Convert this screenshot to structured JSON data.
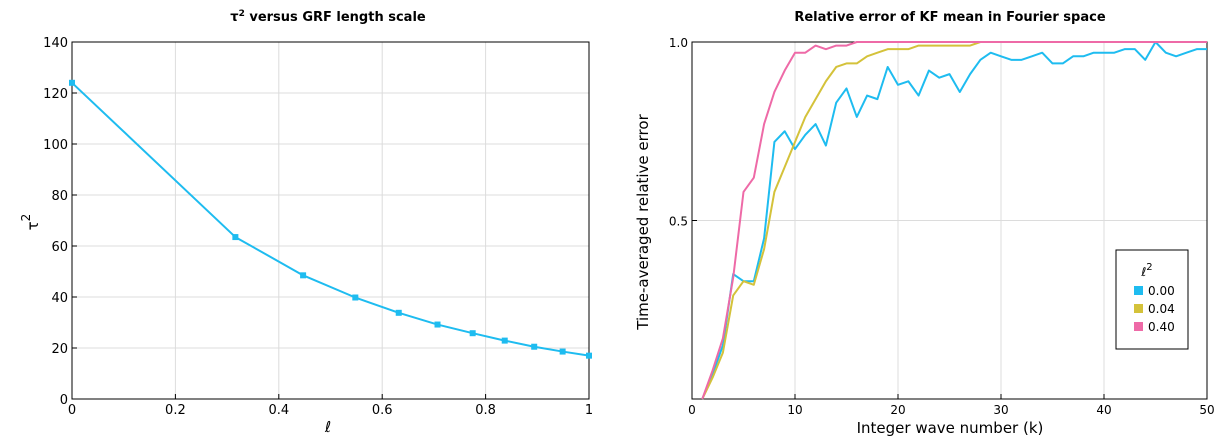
{
  "chart_data": [
    {
      "type": "line",
      "title_main": "τ",
      "title_sup": "2",
      "title_rest": " versus GRF length scale",
      "xlabel": "ℓ",
      "ylabel": "τ",
      "ylabel_sup": "2",
      "xlim": [
        0,
        1
      ],
      "ylim": [
        0,
        140
      ],
      "xticks": [
        0,
        0.2,
        0.4,
        0.6,
        0.8,
        1
      ],
      "xtick_labels": [
        "0",
        "0.2",
        "0.4",
        "0.6",
        "0.8",
        "1"
      ],
      "yticks": [
        0,
        20,
        40,
        60,
        80,
        100,
        120,
        140
      ],
      "ytick_labels": [
        "0",
        "20",
        "40",
        "60",
        "80",
        "100",
        "120",
        "140"
      ],
      "grid": true,
      "series": [
        {
          "color": "#1ebcf0",
          "x": [
            0,
            0.316,
            0.447,
            0.548,
            0.632,
            0.707,
            0.775,
            0.837,
            0.894,
            0.949,
            1.0
          ],
          "y": [
            124,
            63.5,
            48.5,
            39.8,
            33.8,
            29.2,
            25.8,
            22.9,
            20.5,
            18.6,
            17
          ]
        }
      ]
    },
    {
      "type": "line",
      "title": "Relative error of KF mean in Fourier space",
      "xlabel": "Integer wave number (k)",
      "ylabel": "Time-averaged relative error",
      "xlim": [
        0,
        50
      ],
      "ylim": [
        0,
        1
      ],
      "xticks": [
        0,
        10,
        20,
        30,
        40,
        50
      ],
      "xtick_labels": [
        "0",
        "10",
        "20",
        "30",
        "40",
        "50"
      ],
      "yticks": [
        0.5,
        1.0
      ],
      "ytick_labels": [
        "0.5",
        "1.0"
      ],
      "grid": true,
      "legend_title": "ℓ",
      "legend_title_sup": "2",
      "legend_position": "lower-right",
      "series": [
        {
          "name": "0.00",
          "color": "#1ebcf0",
          "x": [
            1,
            2,
            3,
            4,
            5,
            6,
            7,
            8,
            9,
            10,
            11,
            12,
            13,
            14,
            15,
            16,
            17,
            18,
            19,
            20,
            21,
            22,
            23,
            24,
            25,
            26,
            27,
            28,
            29,
            30,
            31,
            32,
            33,
            34,
            35,
            36,
            37,
            38,
            39,
            40,
            41,
            42,
            43,
            44,
            45,
            46,
            47,
            48,
            49,
            50
          ],
          "y": [
            0.0,
            0.07,
            0.15,
            0.35,
            0.33,
            0.33,
            0.45,
            0.72,
            0.75,
            0.7,
            0.74,
            0.77,
            0.71,
            0.83,
            0.87,
            0.79,
            0.85,
            0.84,
            0.93,
            0.88,
            0.89,
            0.85,
            0.92,
            0.9,
            0.91,
            0.86,
            0.91,
            0.95,
            0.97,
            0.96,
            0.95,
            0.95,
            0.96,
            0.97,
            0.94,
            0.94,
            0.96,
            0.96,
            0.97,
            0.97,
            0.97,
            0.98,
            0.98,
            0.95,
            1.0,
            0.97,
            0.96,
            0.97,
            0.98,
            0.98
          ]
        },
        {
          "name": "0.04",
          "color": "#d4c23a",
          "x": [
            1,
            2,
            3,
            4,
            5,
            6,
            7,
            8,
            9,
            10,
            11,
            12,
            13,
            14,
            15,
            16,
            17,
            18,
            19,
            20,
            21,
            22,
            23,
            24,
            25,
            26,
            27,
            28,
            29,
            30,
            31,
            32,
            33,
            34,
            35,
            36,
            37,
            38,
            39,
            40,
            41,
            42,
            43,
            44,
            45,
            46,
            47,
            48,
            49,
            50
          ],
          "y": [
            0.0,
            0.06,
            0.13,
            0.29,
            0.33,
            0.32,
            0.42,
            0.58,
            0.65,
            0.72,
            0.79,
            0.84,
            0.89,
            0.93,
            0.94,
            0.94,
            0.96,
            0.97,
            0.98,
            0.98,
            0.98,
            0.99,
            0.99,
            0.99,
            0.99,
            0.99,
            0.99,
            1.0,
            1.0,
            1.0,
            1.0,
            1.0,
            1.0,
            1.0,
            1.0,
            1.0,
            1.0,
            1.0,
            1.0,
            1.0,
            1.0,
            1.0,
            1.0,
            1.0,
            1.0,
            1.0,
            1.0,
            1.0,
            1.0,
            1.0
          ]
        },
        {
          "name": "0.40",
          "color": "#ee6aa7",
          "x": [
            1,
            2,
            3,
            4,
            5,
            6,
            7,
            8,
            9,
            10,
            11,
            12,
            13,
            14,
            15,
            16,
            17,
            18,
            19,
            20,
            21,
            22,
            23,
            24,
            25,
            26,
            27,
            28,
            29,
            30,
            31,
            32,
            33,
            34,
            35,
            36,
            37,
            38,
            39,
            40,
            41,
            42,
            43,
            44,
            45,
            46,
            47,
            48,
            49,
            50
          ],
          "y": [
            0.0,
            0.08,
            0.17,
            0.34,
            0.58,
            0.62,
            0.77,
            0.86,
            0.92,
            0.97,
            0.97,
            0.99,
            0.98,
            0.99,
            0.99,
            1.0,
            1.0,
            1.0,
            1.0,
            1.0,
            1.0,
            1.0,
            1.0,
            1.0,
            1.0,
            1.0,
            1.0,
            1.0,
            1.0,
            1.0,
            1.0,
            1.0,
            1.0,
            1.0,
            1.0,
            1.0,
            1.0,
            1.0,
            1.0,
            1.0,
            1.0,
            1.0,
            1.0,
            1.0,
            1.0,
            1.0,
            1.0,
            1.0,
            1.0,
            1.0
          ]
        }
      ]
    }
  ]
}
